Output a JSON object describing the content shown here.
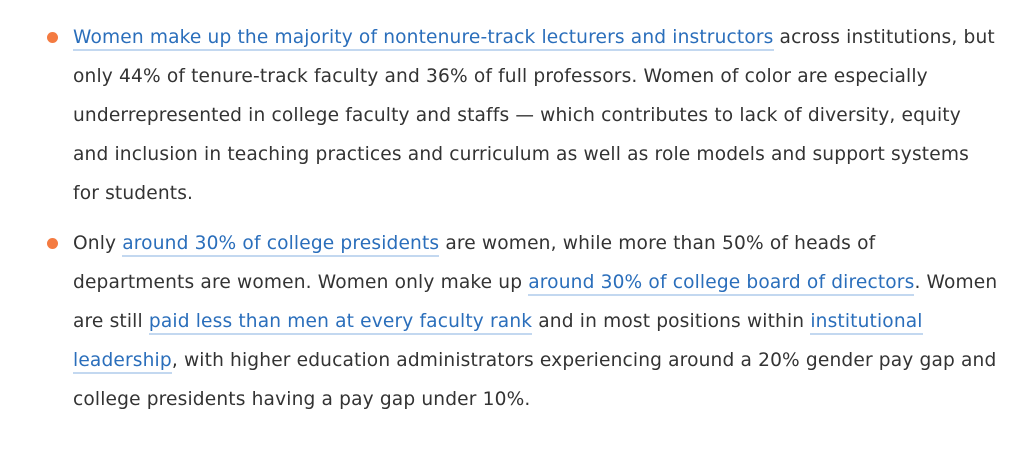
{
  "accent_color": "#f47b41",
  "link_color": "#2a6ebb",
  "bullets": [
    {
      "link1": "Women make up the majority of nontenure-track lecturers and instructors",
      "text1": " across institutions, but only 44% of tenure-track faculty and 36% of full professors. Women of color are especially underrepresented in college faculty and staffs — which contributes to lack of diversity, equity and inclusion in teaching practices and curriculum as well as role models and support systems for students."
    },
    {
      "text0": "Only ",
      "link1": "around 30% of college presidents",
      "text1": " are women, while more than 50% of heads of departments are women. Women only make up ",
      "link2": "around 30% of college board of directors",
      "text2": ". Women are still ",
      "link3": "paid less than men at every faculty rank",
      "text3": " and in most positions within ",
      "link4": "institutional leadership",
      "text4": ", with higher education administrators experiencing around a 20% gender pay gap and college presidents having a pay gap under 10%."
    }
  ]
}
